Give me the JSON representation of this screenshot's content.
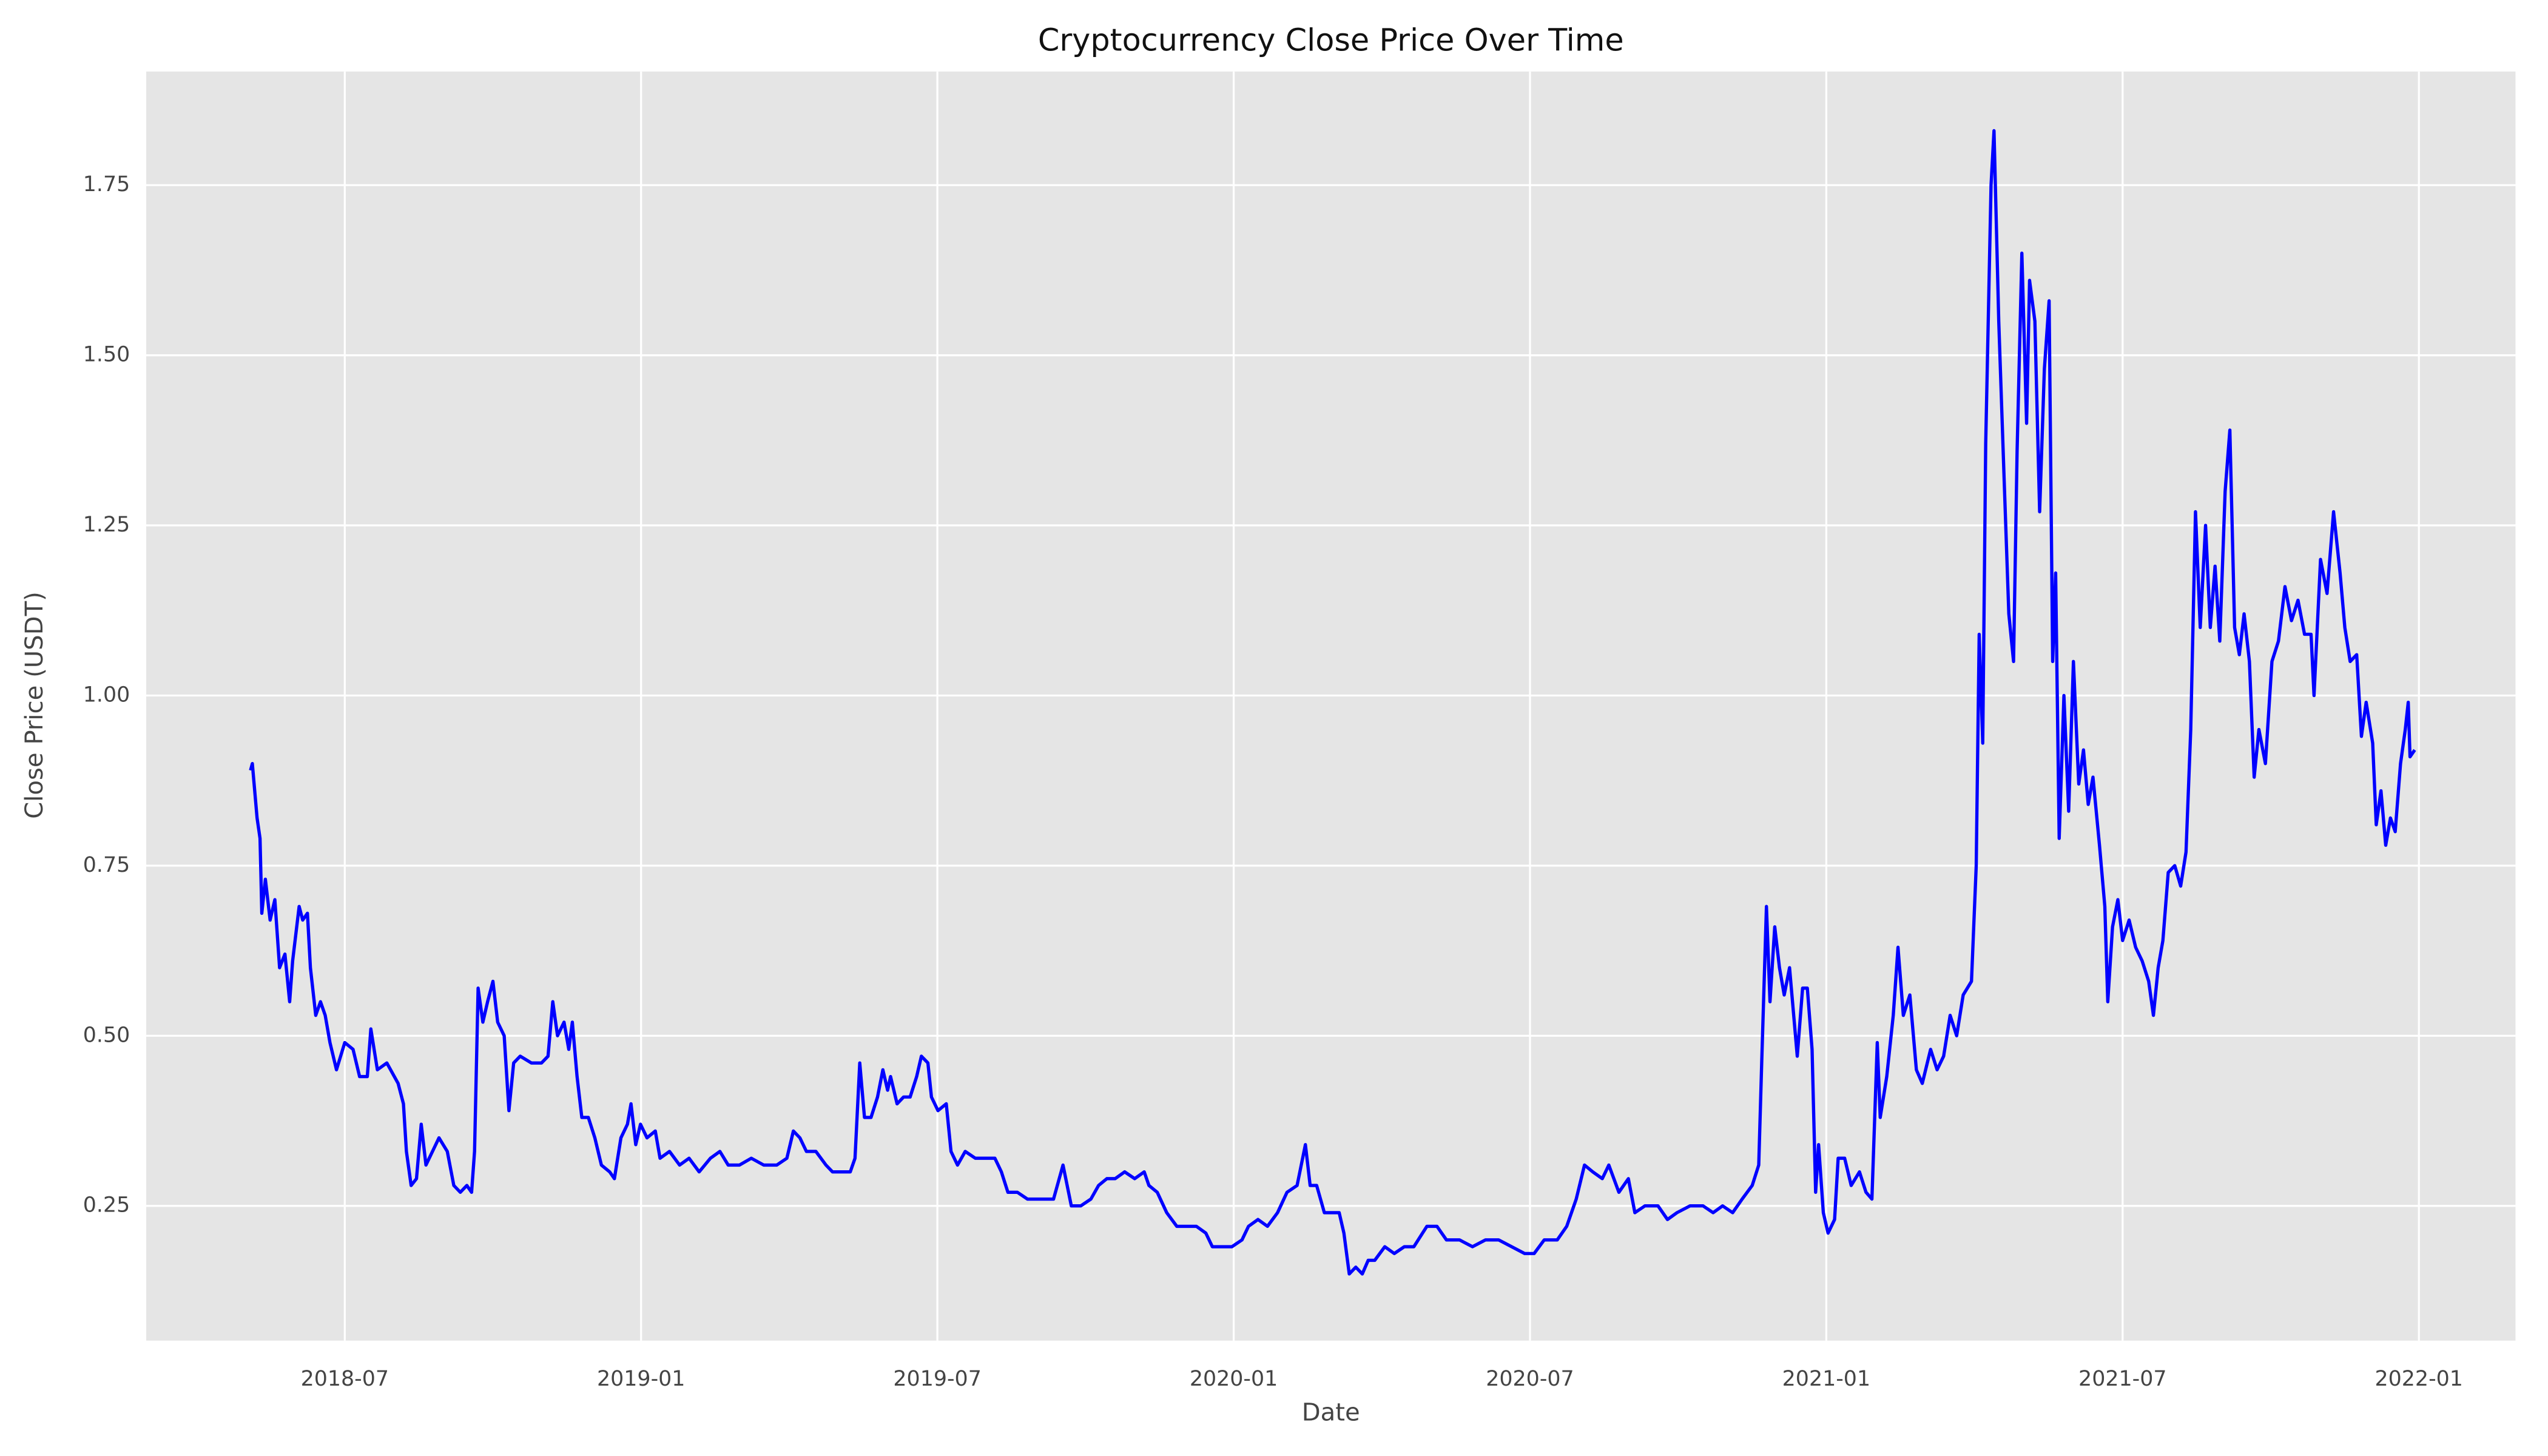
{
  "chart_data": {
    "type": "line",
    "title": "Cryptocurrency Close Price Over Time",
    "x_label": "Date",
    "y_label": "Close Price (USDT)",
    "color": "#0000ff",
    "grid": true,
    "x": [
      2018.341,
      2018.344,
      2018.352,
      2018.357,
      2018.36,
      2018.366,
      2018.374,
      2018.382,
      2018.39,
      2018.399,
      2018.407,
      2018.412,
      2018.423,
      2018.429,
      2018.437,
      2018.442,
      2018.451,
      2018.459,
      2018.467,
      2018.475,
      2018.486,
      2018.5,
      2018.514,
      2018.525,
      2018.538,
      2018.544,
      2018.555,
      2018.571,
      2018.59,
      2018.599,
      2018.604,
      2018.612,
      2018.621,
      2018.629,
      2018.637,
      2018.648,
      2018.659,
      2018.673,
      2018.684,
      2018.695,
      2018.706,
      2018.714,
      2018.719,
      2018.725,
      2018.733,
      2018.741,
      2018.75,
      2018.758,
      2018.769,
      2018.777,
      2018.785,
      2018.796,
      2018.815,
      2018.832,
      2018.843,
      2018.851,
      2018.859,
      2018.87,
      2018.878,
      2018.884,
      2018.892,
      2018.9,
      2018.911,
      2018.922,
      2018.933,
      2018.947,
      2018.955,
      2018.966,
      2018.977,
      2018.983,
      2018.991,
      2018.999,
      2019.01,
      2019.024,
      2019.032,
      2019.048,
      2019.065,
      2019.081,
      2019.098,
      2019.117,
      2019.133,
      2019.147,
      2019.166,
      2019.186,
      2019.207,
      2019.229,
      2019.246,
      2019.257,
      2019.268,
      2019.279,
      2019.295,
      2019.312,
      2019.323,
      2019.339,
      2019.353,
      2019.361,
      2019.369,
      2019.377,
      2019.388,
      2019.399,
      2019.408,
      2019.416,
      2019.421,
      2019.432,
      2019.443,
      2019.454,
      2019.465,
      2019.473,
      2019.484,
      2019.49,
      2019.501,
      2019.515,
      2019.523,
      2019.534,
      2019.547,
      2019.564,
      2019.583,
      2019.597,
      2019.608,
      2019.619,
      2019.635,
      2019.652,
      2019.674,
      2019.696,
      2019.712,
      2019.726,
      2019.742,
      2019.759,
      2019.772,
      2019.786,
      2019.8,
      2019.816,
      2019.833,
      2019.849,
      2019.857,
      2019.871,
      2019.887,
      2019.904,
      2019.92,
      2019.937,
      2019.953,
      2019.964,
      2019.981,
      2019.997,
      2020.014,
      2020.025,
      2020.041,
      2020.057,
      2020.074,
      2020.09,
      2020.107,
      2020.121,
      2020.129,
      2020.14,
      2020.153,
      2020.167,
      2020.178,
      2020.186,
      2020.195,
      2020.206,
      2020.217,
      2020.227,
      2020.238,
      2020.255,
      2020.271,
      2020.288,
      2020.304,
      2020.326,
      2020.343,
      2020.359,
      2020.381,
      2020.403,
      2020.425,
      2020.447,
      2020.469,
      2020.491,
      2020.507,
      2020.524,
      2020.546,
      2020.562,
      2020.578,
      2020.592,
      2020.606,
      2020.622,
      2020.633,
      2020.65,
      2020.666,
      2020.677,
      2020.694,
      2020.716,
      2020.732,
      2020.748,
      2020.77,
      2020.792,
      2020.809,
      2020.825,
      2020.842,
      2020.858,
      2020.875,
      2020.886,
      2020.891,
      2020.899,
      2020.905,
      2020.913,
      2020.921,
      2020.929,
      2020.938,
      2020.946,
      2020.951,
      2020.96,
      2020.968,
      2020.976,
      2020.982,
      2020.987,
      2020.995,
      2021.003,
      2021.014,
      2021.02,
      2021.031,
      2021.042,
      2021.056,
      2021.067,
      2021.077,
      2021.086,
      2021.091,
      2021.102,
      2021.113,
      2021.121,
      2021.13,
      2021.141,
      2021.152,
      2021.162,
      2021.176,
      2021.187,
      2021.198,
      2021.209,
      2021.22,
      2021.231,
      2021.245,
      2021.253,
      2021.258,
      2021.264,
      2021.269,
      2021.278,
      2021.283,
      2021.291,
      2021.3,
      2021.308,
      2021.316,
      2021.322,
      2021.33,
      2021.338,
      2021.343,
      2021.352,
      2021.36,
      2021.368,
      2021.376,
      2021.382,
      2021.387,
      2021.393,
      2021.401,
      2021.409,
      2021.417,
      2021.426,
      2021.434,
      2021.442,
      2021.45,
      2021.461,
      2021.47,
      2021.475,
      2021.483,
      2021.492,
      2021.5,
      2021.511,
      2021.522,
      2021.533,
      2021.544,
      2021.552,
      2021.56,
      2021.568,
      2021.577,
      2021.588,
      2021.598,
      2021.607,
      2021.615,
      2021.623,
      2021.631,
      2021.64,
      2021.648,
      2021.656,
      2021.664,
      2021.673,
      2021.681,
      2021.689,
      2021.697,
      2021.705,
      2021.714,
      2021.722,
      2021.73,
      2021.741,
      2021.752,
      2021.763,
      2021.774,
      2021.785,
      2021.796,
      2021.807,
      2021.818,
      2021.823,
      2021.834,
      2021.845,
      2021.856,
      2021.867,
      2021.875,
      2021.884,
      2021.895,
      2021.903,
      2021.911,
      2021.922,
      2021.928,
      2021.936,
      2021.944,
      2021.952,
      2021.96,
      2021.969,
      2021.977,
      2021.982,
      2021.985,
      2021.993
    ],
    "values": [
      0.89,
      0.9,
      0.82,
      0.79,
      0.68,
      0.73,
      0.67,
      0.7,
      0.6,
      0.62,
      0.55,
      0.61,
      0.69,
      0.67,
      0.68,
      0.6,
      0.53,
      0.55,
      0.53,
      0.49,
      0.45,
      0.49,
      0.48,
      0.44,
      0.44,
      0.51,
      0.45,
      0.46,
      0.43,
      0.4,
      0.33,
      0.28,
      0.29,
      0.37,
      0.31,
      0.33,
      0.35,
      0.33,
      0.28,
      0.27,
      0.28,
      0.27,
      0.33,
      0.57,
      0.52,
      0.55,
      0.58,
      0.52,
      0.5,
      0.39,
      0.46,
      0.47,
      0.46,
      0.46,
      0.47,
      0.55,
      0.5,
      0.52,
      0.48,
      0.52,
      0.44,
      0.38,
      0.38,
      0.35,
      0.31,
      0.3,
      0.29,
      0.35,
      0.37,
      0.4,
      0.34,
      0.37,
      0.35,
      0.36,
      0.32,
      0.33,
      0.31,
      0.32,
      0.3,
      0.32,
      0.33,
      0.31,
      0.31,
      0.32,
      0.31,
      0.31,
      0.32,
      0.36,
      0.35,
      0.33,
      0.33,
      0.31,
      0.3,
      0.3,
      0.3,
      0.32,
      0.46,
      0.38,
      0.38,
      0.41,
      0.45,
      0.42,
      0.44,
      0.4,
      0.41,
      0.41,
      0.44,
      0.47,
      0.46,
      0.41,
      0.39,
      0.4,
      0.33,
      0.31,
      0.33,
      0.32,
      0.32,
      0.32,
      0.3,
      0.27,
      0.27,
      0.26,
      0.26,
      0.26,
      0.31,
      0.25,
      0.25,
      0.26,
      0.28,
      0.29,
      0.29,
      0.3,
      0.29,
      0.3,
      0.28,
      0.27,
      0.24,
      0.22,
      0.22,
      0.22,
      0.21,
      0.19,
      0.19,
      0.19,
      0.2,
      0.22,
      0.23,
      0.22,
      0.24,
      0.27,
      0.28,
      0.34,
      0.28,
      0.28,
      0.24,
      0.24,
      0.24,
      0.21,
      0.15,
      0.16,
      0.15,
      0.17,
      0.17,
      0.19,
      0.18,
      0.19,
      0.19,
      0.22,
      0.22,
      0.2,
      0.2,
      0.19,
      0.2,
      0.2,
      0.19,
      0.18,
      0.18,
      0.2,
      0.2,
      0.22,
      0.26,
      0.31,
      0.3,
      0.29,
      0.31,
      0.27,
      0.29,
      0.24,
      0.25,
      0.25,
      0.23,
      0.24,
      0.25,
      0.25,
      0.24,
      0.25,
      0.24,
      0.26,
      0.28,
      0.31,
      0.46,
      0.69,
      0.55,
      0.66,
      0.6,
      0.56,
      0.6,
      0.52,
      0.47,
      0.57,
      0.57,
      0.48,
      0.27,
      0.34,
      0.24,
      0.21,
      0.23,
      0.32,
      0.32,
      0.28,
      0.3,
      0.27,
      0.26,
      0.49,
      0.38,
      0.44,
      0.53,
      0.63,
      0.53,
      0.56,
      0.45,
      0.43,
      0.48,
      0.45,
      0.47,
      0.53,
      0.5,
      0.56,
      0.58,
      0.75,
      1.09,
      0.93,
      1.37,
      1.75,
      1.83,
      1.55,
      1.32,
      1.12,
      1.05,
      1.36,
      1.65,
      1.4,
      1.61,
      1.55,
      1.27,
      1.48,
      1.58,
      1.05,
      1.18,
      0.79,
      1.0,
      0.83,
      1.05,
      0.87,
      0.92,
      0.84,
      0.88,
      0.78,
      0.69,
      0.55,
      0.66,
      0.7,
      0.64,
      0.67,
      0.63,
      0.61,
      0.58,
      0.53,
      0.6,
      0.64,
      0.74,
      0.75,
      0.72,
      0.77,
      0.95,
      1.27,
      1.1,
      1.25,
      1.1,
      1.19,
      1.08,
      1.3,
      1.39,
      1.1,
      1.06,
      1.12,
      1.05,
      0.88,
      0.95,
      0.9,
      1.05,
      1.08,
      1.16,
      1.11,
      1.14,
      1.09,
      1.09,
      1.0,
      1.2,
      1.15,
      1.27,
      1.18,
      1.1,
      1.05,
      1.06,
      0.94,
      0.99,
      0.93,
      0.81,
      0.86,
      0.78,
      0.82,
      0.8,
      0.9,
      0.95,
      0.99,
      0.91,
      0.92
    ],
    "xlim": [
      2018.165,
      2022.163
    ],
    "xticks": [
      {
        "value": 2018.5,
        "label": "2018-07"
      },
      {
        "value": 2019.0,
        "label": "2019-01"
      },
      {
        "value": 2019.5,
        "label": "2019-07"
      },
      {
        "value": 2020.0,
        "label": "2020-01"
      },
      {
        "value": 2020.5,
        "label": "2020-07"
      },
      {
        "value": 2021.0,
        "label": "2021-01"
      },
      {
        "value": 2021.5,
        "label": "2021-07"
      },
      {
        "value": 2022.0,
        "label": "2022-01"
      }
    ],
    "ylim": [
      0.052,
      1.917
    ],
    "yticks": [
      0.25,
      {
        "value": 0.5,
        "label": "0.50"
      },
      0.75,
      {
        "value": 1.0,
        "label": "1.00"
      },
      1.25,
      {
        "value": 1.5,
        "label": "1.50"
      },
      1.75
    ]
  }
}
